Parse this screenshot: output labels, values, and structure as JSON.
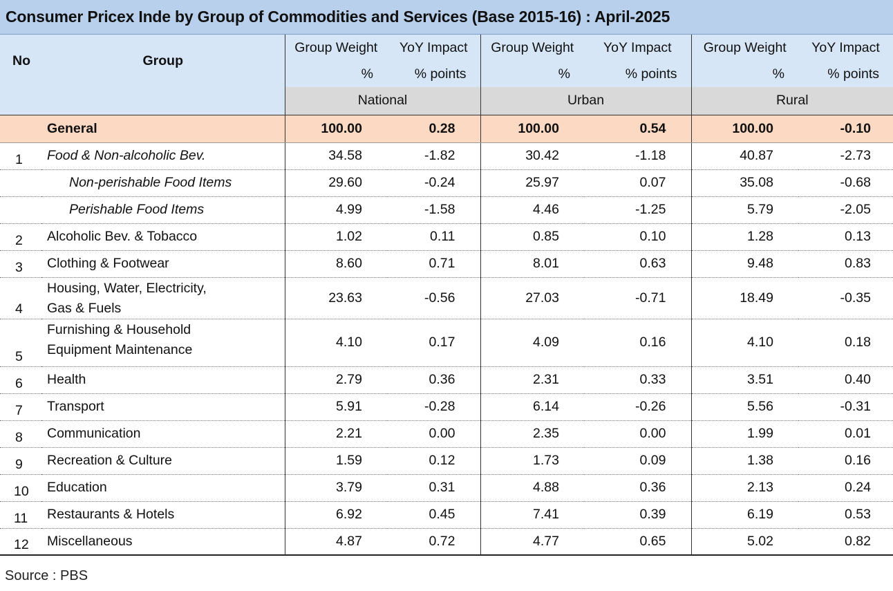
{
  "title": "Consumer Pricex Inde by Group of Commodities and Services  (Base 2015-16) :  April-2025",
  "headers": {
    "no": "No",
    "group": "Group",
    "weight_line1": "Group Weight",
    "weight_line2": "%",
    "impact_line1": "YoY Impact",
    "impact_line2": "% points",
    "regions": [
      "National",
      "Urban",
      "Rural"
    ]
  },
  "rows": [
    {
      "no": "",
      "group": "General",
      "nw": "100.00",
      "ni": "0.28",
      "uw": "100.00",
      "ui": "0.54",
      "rw": "100.00",
      "ri": "-0.10"
    },
    {
      "no": "1",
      "group": "Food & Non-alcoholic Bev.",
      "nw": "34.58",
      "ni": "-1.82",
      "uw": "30.42",
      "ui": "-1.18",
      "rw": "40.87",
      "ri": "-2.73"
    },
    {
      "no": "",
      "group": "Non-perishable Food Items",
      "nw": "29.60",
      "ni": "-0.24",
      "uw": "25.97",
      "ui": "0.07",
      "rw": "35.08",
      "ri": "-0.68"
    },
    {
      "no": "",
      "group": "Perishable Food Items",
      "nw": "4.99",
      "ni": "-1.58",
      "uw": "4.46",
      "ui": "-1.25",
      "rw": "5.79",
      "ri": "-2.05"
    },
    {
      "no": "2",
      "group": "Alcoholic Bev. & Tobacco",
      "nw": "1.02",
      "ni": "0.11",
      "uw": "0.85",
      "ui": "0.10",
      "rw": "1.28",
      "ri": "0.13"
    },
    {
      "no": "3",
      "group": "Clothing & Footwear",
      "nw": "8.60",
      "ni": "0.71",
      "uw": "8.01",
      "ui": "0.63",
      "rw": "9.48",
      "ri": "0.83"
    },
    {
      "no": "4",
      "group_line1": "Housing, Water, Electricity,",
      "group_line2": "Gas & Fuels",
      "nw": "23.63",
      "ni": "-0.56",
      "uw": "27.03",
      "ui": "-0.71",
      "rw": "18.49",
      "ri": "-0.35"
    },
    {
      "no": "5",
      "group_line1": "Furnishing & Household",
      "group_line2": "Equipment Maintenance",
      "nw": "4.10",
      "ni": "0.17",
      "uw": "4.09",
      "ui": "0.16",
      "rw": "4.10",
      "ri": "0.18"
    },
    {
      "no": "6",
      "group": "Health",
      "nw": "2.79",
      "ni": "0.36",
      "uw": "2.31",
      "ui": "0.33",
      "rw": "3.51",
      "ri": "0.40"
    },
    {
      "no": "7",
      "group": "Transport",
      "nw": "5.91",
      "ni": "-0.28",
      "uw": "6.14",
      "ui": "-0.26",
      "rw": "5.56",
      "ri": "-0.31"
    },
    {
      "no": "8",
      "group": "Communication",
      "nw": "2.21",
      "ni": "0.00",
      "uw": "2.35",
      "ui": "0.00",
      "rw": "1.99",
      "ri": "0.01"
    },
    {
      "no": "9",
      "group": "Recreation & Culture",
      "nw": "1.59",
      "ni": "0.12",
      "uw": "1.73",
      "ui": "0.09",
      "rw": "1.38",
      "ri": "0.16"
    },
    {
      "no": "10",
      "group": "Education",
      "nw": "3.79",
      "ni": "0.31",
      "uw": "4.88",
      "ui": "0.36",
      "rw": "2.13",
      "ri": "0.24"
    },
    {
      "no": "11",
      "group": "Restaurants & Hotels",
      "nw": "6.92",
      "ni": "0.45",
      "uw": "7.41",
      "ui": "0.39",
      "rw": "6.19",
      "ri": "0.53"
    },
    {
      "no": "12",
      "group": "Miscellaneous",
      "nw": "4.87",
      "ni": "0.72",
      "uw": "4.77",
      "ui": "0.65",
      "rw": "5.02",
      "ri": "0.82"
    }
  ],
  "source": "Source : PBS"
}
